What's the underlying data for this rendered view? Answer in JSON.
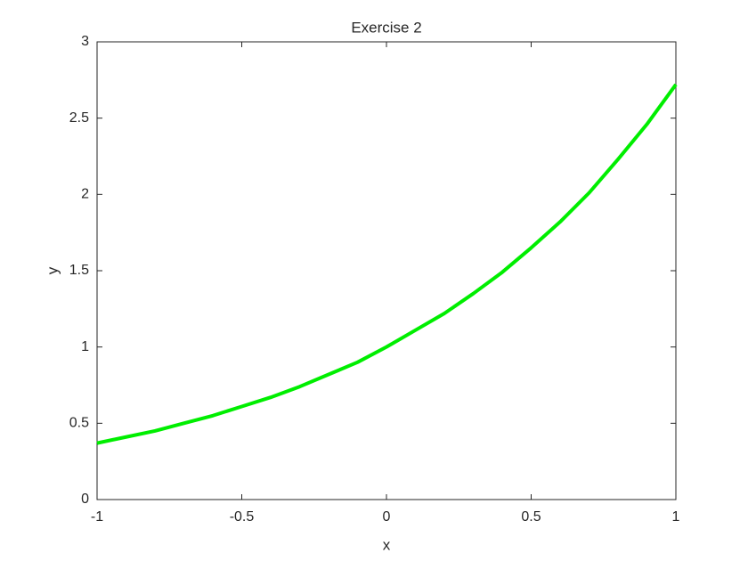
{
  "chart_data": {
    "type": "line",
    "title": "Exercise 2",
    "x_label": "x",
    "y_label": "y",
    "x": [
      -1,
      -0.9,
      -0.8,
      -0.7,
      -0.6,
      -0.5,
      -0.4,
      -0.3,
      -0.2,
      -0.1,
      0,
      0.1,
      0.2,
      0.3,
      0.4,
      0.5,
      0.6,
      0.7,
      0.8,
      0.9,
      1
    ],
    "series": [
      {
        "color": "#00ee00",
        "values": [
          0.37,
          0.41,
          0.45,
          0.5,
          0.55,
          0.61,
          0.67,
          0.74,
          0.82,
          0.9,
          1.0,
          1.11,
          1.22,
          1.35,
          1.49,
          1.65,
          1.82,
          2.01,
          2.23,
          2.46,
          2.72
        ]
      }
    ],
    "xlim": [
      -1,
      1
    ],
    "xticks": [
      -1,
      -0.5,
      0,
      0.5,
      1
    ],
    "ylim": [
      0,
      3
    ],
    "yticks": [
      0,
      0.5,
      1,
      1.5,
      2,
      2.5,
      3
    ]
  }
}
